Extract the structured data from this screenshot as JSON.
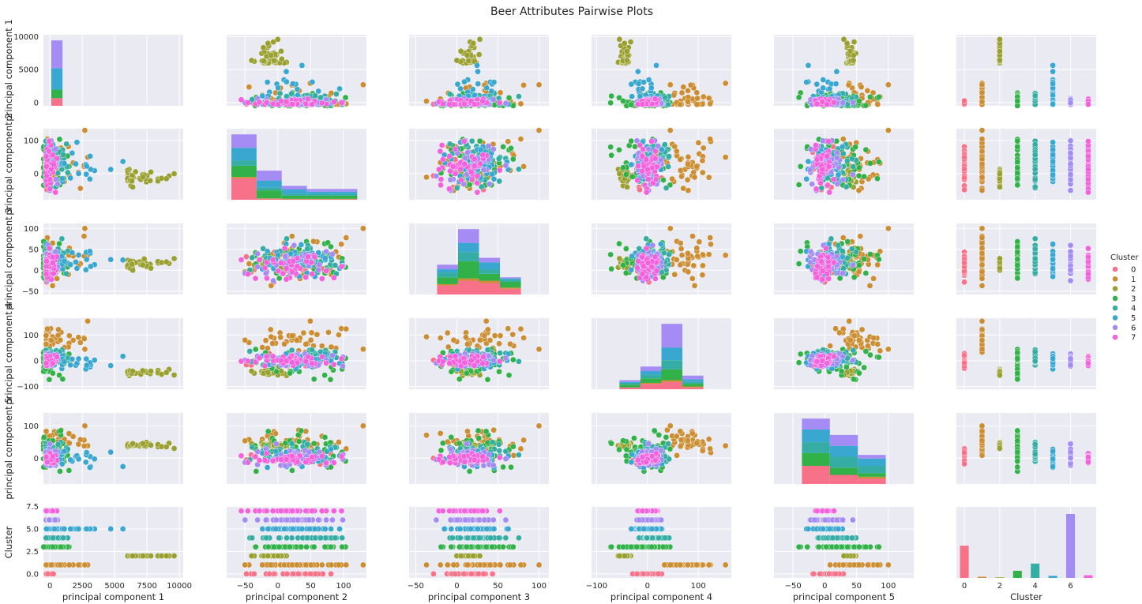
{
  "chart_data": {
    "type": "scatter",
    "title": "Beer Attributes Pairwise Plots",
    "variables": [
      "principal component 1",
      "principal component 2",
      "principal component 3",
      "principal component 4",
      "principal component 5",
      "Cluster"
    ],
    "axis_labels": [
      "principal component 1",
      "principal component 2",
      "principal component 3",
      "principal component 4",
      "principal component 5",
      "Cluster"
    ],
    "ranges": [
      [
        -500,
        10300
      ],
      [
        -78,
        135
      ],
      [
        -58,
        112
      ],
      [
        -110,
        165
      ],
      [
        -80,
        140
      ],
      [
        -0.45,
        7.45
      ]
    ],
    "x_ticks": [
      [
        0,
        2500,
        5000,
        7500,
        10000
      ],
      [
        -50,
        0,
        50,
        100
      ],
      [
        -50,
        0,
        50,
        100
      ],
      [
        -100,
        0,
        100
      ],
      [
        -50,
        0,
        50,
        100
      ],
      [
        0,
        2,
        4,
        6
      ]
    ],
    "x_tick_labels": [
      [
        "0",
        "2500",
        "5000",
        "7500",
        "10000"
      ],
      [
        "−50",
        "0",
        "50",
        "100"
      ],
      [
        "−50",
        "0",
        "50",
        "100"
      ],
      [
        "−100",
        "0",
        "100"
      ],
      [
        "−50",
        "0",
        "50",
        "100"
      ],
      [
        "0",
        "2",
        "4",
        "6"
      ]
    ],
    "y_ticks": [
      [
        0,
        5000,
        10000
      ],
      [
        0,
        100
      ],
      [
        -50,
        0,
        50,
        100
      ],
      [
        -100,
        0,
        100
      ],
      [
        0,
        100
      ],
      [
        0,
        2.5,
        5,
        7.5
      ]
    ],
    "y_tick_labels": [
      [
        "0",
        "5000",
        "10000"
      ],
      [
        "0",
        "100"
      ],
      [
        "−50",
        "0",
        "50",
        "100"
      ],
      [
        "−100",
        "0",
        "100"
      ],
      [
        "0",
        "100"
      ],
      [
        "0.0",
        "2.5",
        "5.0",
        "7.5"
      ]
    ],
    "grid": true,
    "legend": {
      "title": "Cluster",
      "placement": "right",
      "entries": [
        "0",
        "1",
        "2",
        "3",
        "4",
        "5",
        "6",
        "7"
      ]
    },
    "cluster_colors": [
      "#f77189",
      "#cc8e33",
      "#99a02f",
      "#32b149",
      "#36ada4",
      "#39a7d0",
      "#a48cf4",
      "#f461dd"
    ],
    "clusters": [
      {
        "cluster": 0,
        "pc1": [
          -300,
          300
        ],
        "pc2": [
          -70,
          120
        ],
        "pc3": [
          -40,
          60
        ],
        "pc4": [
          -40,
          40
        ],
        "pc5": [
          -30,
          40
        ],
        "pc1_extremes": []
      },
      {
        "cluster": 1,
        "pc1": [
          -300,
          3000
        ],
        "pc2": [
          -70,
          120
        ],
        "pc3": [
          -45,
          105
        ],
        "pc4": [
          0,
          160
        ],
        "pc5": [
          0,
          105
        ],
        "pc1_extremes": [
          [
            2700,
            130,
            100,
            45,
            100
          ]
        ]
      },
      {
        "cluster": 2,
        "pc1": [
          6000,
          9800
        ],
        "pc2": [
          -40,
          20
        ],
        "pc3": [
          0,
          30
        ],
        "pc4": [
          -60,
          -30
        ],
        "pc5": [
          30,
          50
        ],
        "pc1_extremes": [
          [
            6400,
            -40,
            0,
            -40,
            45
          ],
          [
            7800,
            5,
            5,
            -40,
            40
          ],
          [
            9000,
            -15,
            20,
            -45,
            35
          ],
          [
            9600,
            0,
            28,
            -55,
            30
          ]
        ]
      },
      {
        "cluster": 3,
        "pc1": [
          -500,
          1500
        ],
        "pc2": [
          -70,
          125
        ],
        "pc3": [
          -45,
          95
        ],
        "pc4": [
          -100,
          90
        ],
        "pc5": [
          -70,
          125
        ],
        "pc1_extremes": []
      },
      {
        "cluster": 4,
        "pc1": [
          -300,
          1500
        ],
        "pc2": [
          -70,
          125
        ],
        "pc3": [
          -45,
          85
        ],
        "pc4": [
          -30,
          70
        ],
        "pc5": [
          -30,
          55
        ],
        "pc1_extremes": []
      },
      {
        "cluster": 5,
        "pc1": [
          -300,
          6000
        ],
        "pc2": [
          -70,
          130
        ],
        "pc3": [
          -45,
          85
        ],
        "pc4": [
          -50,
          40
        ],
        "pc5": [
          -40,
          40
        ],
        "pc1_extremes": []
      },
      {
        "cluster": 6,
        "pc1": [
          -300,
          600
        ],
        "pc2": [
          -70,
          125
        ],
        "pc3": [
          -40,
          70
        ],
        "pc4": [
          -40,
          40
        ],
        "pc5": [
          -40,
          50
        ],
        "pc1_extremes": []
      },
      {
        "cluster": 7,
        "pc1": [
          -300,
          600
        ],
        "pc2": [
          -70,
          120
        ],
        "pc3": [
          -40,
          60
        ],
        "pc4": [
          -30,
          30
        ],
        "pc5": [
          -25,
          25
        ],
        "pc1_extremes": []
      }
    ],
    "diagonal_histograms": [
      {
        "variable": "principal component 1",
        "stacked_counts": [
          [
            1000,
            0,
            0,
            1100,
            0,
            2800,
            3600,
            0
          ]
        ]
      },
      {
        "variable": "principal component 2",
        "stacked_counts": [
          [
            480,
            30,
            0,
            250,
            120,
            280,
            300,
            0
          ],
          [
            20,
            10,
            0,
            180,
            60,
            160,
            220,
            0
          ],
          [
            10,
            10,
            0,
            70,
            40,
            100,
            80,
            0
          ],
          [
            10,
            10,
            0,
            70,
            40,
            50,
            60,
            0
          ],
          [
            10,
            10,
            0,
            70,
            40,
            50,
            60,
            0
          ]
        ]
      },
      {
        "variable": "principal component 3",
        "stacked_counts": [
          [
            80,
            10,
            0,
            60,
            40,
            30,
            40,
            0
          ],
          [
            120,
            20,
            0,
            150,
            80,
            80,
            120,
            0
          ],
          [
            100,
            20,
            0,
            60,
            40,
            60,
            40,
            0
          ],
          [
            50,
            10,
            0,
            50,
            20,
            10,
            10,
            0
          ]
        ]
      },
      {
        "variable": "principal component 4",
        "stacked_counts": [
          [
            20,
            0,
            0,
            30,
            20,
            10,
            20,
            0
          ],
          [
            60,
            10,
            0,
            50,
            40,
            40,
            50,
            0
          ],
          [
            80,
            20,
            0,
            120,
            100,
            140,
            260,
            0
          ],
          [
            20,
            10,
            0,
            30,
            20,
            30,
            40,
            0
          ]
        ]
      },
      {
        "variable": "principal component 5",
        "stacked_counts": [
          [
            100,
            0,
            0,
            70,
            60,
            70,
            60,
            0
          ],
          [
            50,
            0,
            0,
            40,
            60,
            60,
            60,
            0
          ],
          [
            30,
            10,
            0,
            20,
            40,
            40,
            20,
            0
          ]
        ]
      },
      {
        "variable": "Cluster",
        "counts": [
          1080,
          40,
          20,
          240,
          480,
          70,
          2140,
          90
        ]
      }
    ]
  }
}
